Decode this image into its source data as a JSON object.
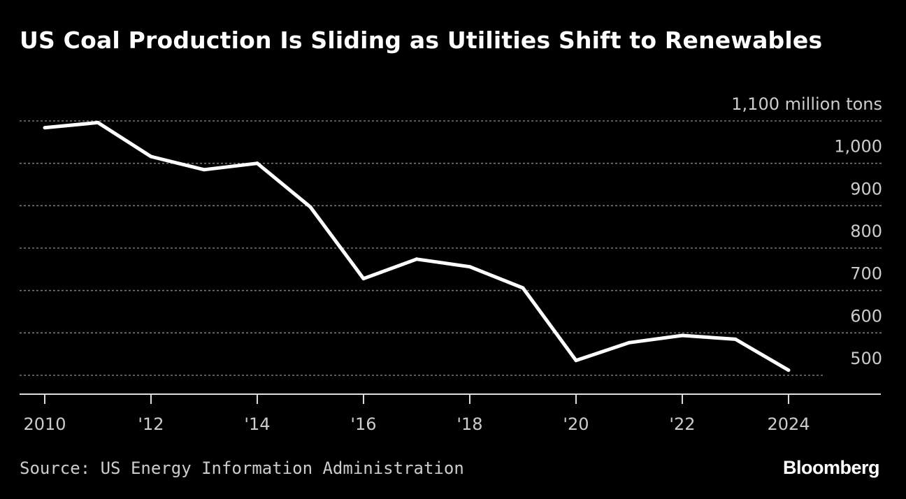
{
  "title": "US Coal Production Is Sliding as Utilities Shift to Renewables",
  "source": "Source: US Energy Information Administration",
  "brand": "Bloomberg",
  "colors": {
    "background": "#000000",
    "line": "#ffffff",
    "text": "#ffffff",
    "tick_text": "#cccccc",
    "grid": "#777777"
  },
  "chart_data": {
    "type": "line",
    "title": "US Coal Production Is Sliding as Utilities Shift to Renewables",
    "xlabel": "",
    "ylabel": "million tons",
    "unit_label": "1,100 million tons",
    "x": [
      2010,
      2011,
      2012,
      2013,
      2014,
      2015,
      2016,
      2017,
      2018,
      2019,
      2020,
      2021,
      2022,
      2023,
      2024
    ],
    "series": [
      {
        "name": "US coal production",
        "values": [
          1084,
          1096,
          1016,
          985,
          1000,
          897,
          728,
          774,
          756,
          706,
          535,
          577,
          594,
          585,
          512
        ]
      }
    ],
    "xlim": [
      2010,
      2024
    ],
    "ylim": [
      450,
      1100
    ],
    "x_ticks": [
      {
        "value": 2010,
        "label": "2010"
      },
      {
        "value": 2012,
        "label": "'12"
      },
      {
        "value": 2014,
        "label": "'14"
      },
      {
        "value": 2016,
        "label": "'16"
      },
      {
        "value": 2018,
        "label": "'18"
      },
      {
        "value": 2020,
        "label": "'20"
      },
      {
        "value": 2022,
        "label": "'22"
      },
      {
        "value": 2024,
        "label": "2024"
      }
    ],
    "y_ticks": [
      {
        "value": 1000,
        "label": "1,000"
      },
      {
        "value": 900,
        "label": "900"
      },
      {
        "value": 800,
        "label": "800"
      },
      {
        "value": 700,
        "label": "700"
      },
      {
        "value": 600,
        "label": "600"
      },
      {
        "value": 500,
        "label": "500"
      }
    ],
    "gridlines": [
      1100,
      1000,
      900,
      800,
      700,
      600,
      500
    ],
    "grid": true,
    "legend": "none"
  }
}
